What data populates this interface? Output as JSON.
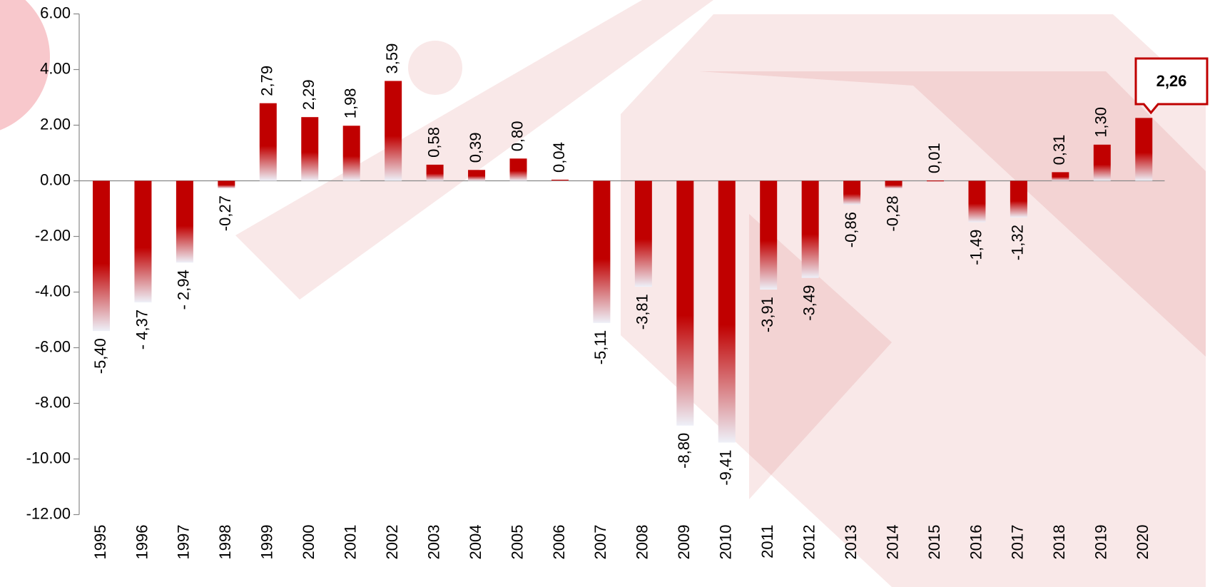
{
  "chart_data": {
    "type": "bar",
    "categories": [
      "1995",
      "1996",
      "1997",
      "1998",
      "1999",
      "2000",
      "2001",
      "2002",
      "2003",
      "2004",
      "2005",
      "2006",
      "2007",
      "2008",
      "2009",
      "2010",
      "2011",
      "2012",
      "2013",
      "2014",
      "2015",
      "2016",
      "2017",
      "2018",
      "2019",
      "2020"
    ],
    "values": [
      -5.4,
      -4.37,
      -2.94,
      -0.27,
      2.79,
      2.29,
      1.98,
      3.59,
      0.58,
      0.39,
      0.8,
      0.04,
      -5.11,
      -3.81,
      -8.8,
      -9.41,
      -3.91,
      -3.49,
      -0.86,
      -0.28,
      0.01,
      -1.49,
      -1.32,
      0.31,
      1.3,
      2.26
    ],
    "value_labels": [
      "-5,40",
      "- 4,37",
      "- 2,94",
      "-0,27",
      "2,79",
      "2,29",
      "1,98",
      "3,59",
      "0,58",
      "0,39",
      "0,80",
      "0,04",
      "-5,11",
      "-3,81",
      "-8,80",
      "-9,41",
      "-3,91",
      "-3,49",
      "-0,86",
      "-0,28",
      "0,01",
      "-1,49",
      "-1,32",
      "0,31",
      "1,30",
      "2,26"
    ],
    "color": "#c00000",
    "highlight_index": 25,
    "ylim": [
      -12,
      6
    ],
    "yticks": [
      {
        "value": -12,
        "label": "-12.00"
      },
      {
        "value": -10,
        "label": "-10.00"
      },
      {
        "value": -8,
        "label": "-8.00"
      },
      {
        "value": -6,
        "label": "-6.00"
      },
      {
        "value": -4,
        "label": "-4.00"
      },
      {
        "value": -2,
        "label": "-2.00"
      },
      {
        "value": 0,
        "label": "0.00"
      },
      {
        "value": 2,
        "label": "2.00"
      },
      {
        "value": 4,
        "label": "4.00"
      },
      {
        "value": 6,
        "label": "6.00"
      }
    ],
    "grid": false
  }
}
